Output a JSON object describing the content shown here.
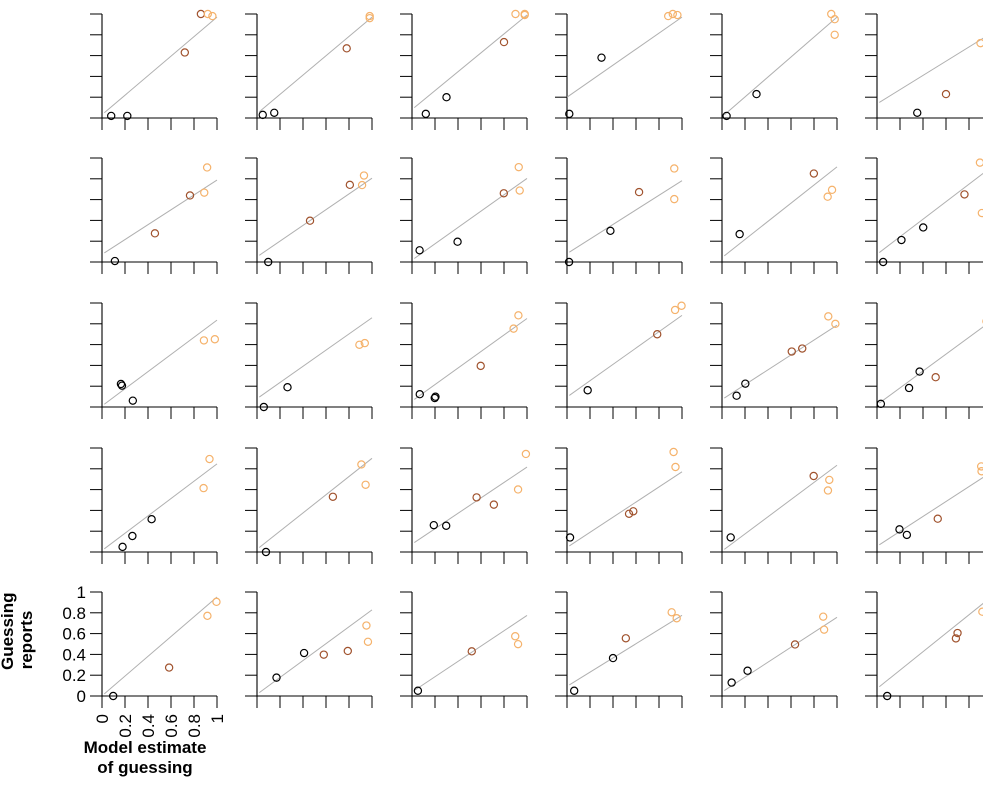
{
  "chart_data": {
    "type": "scatter",
    "panel_grid": {
      "rows": 5,
      "cols": 6
    },
    "xlabel": [
      "Model estimate",
      "of guessing"
    ],
    "ylabel": [
      "Guessing",
      "reports"
    ],
    "xlim": [
      0,
      1
    ],
    "ylim": [
      0,
      1
    ],
    "x_ticks": [
      "0",
      "0.2",
      "0.4",
      "0.6",
      "0.8",
      "1"
    ],
    "y_ticks": [
      "0",
      "0.2",
      "0.4",
      "0.6",
      "0.8",
      "1"
    ],
    "colors": {
      "points_low": "#000000",
      "points_mid": "#a0522d",
      "points_high": "#f5b26b",
      "fit_line": "#b0b0b0",
      "axes": "#000000"
    },
    "panels": [
      {
        "points": [
          [
            0.08,
            0.02
          ],
          [
            0.22,
            0.02
          ],
          [
            0.72,
            0.63
          ],
          [
            0.86,
            1.0
          ],
          [
            0.92,
            1.0
          ],
          [
            0.96,
            0.98
          ]
        ],
        "fit": [
          0.05,
          0.97
        ]
      },
      {
        "points": [
          [
            0.05,
            0.03
          ],
          [
            0.15,
            0.05
          ],
          [
            0.78,
            0.67
          ],
          [
            0.98,
            0.96
          ],
          [
            0.98,
            0.98
          ]
        ],
        "fit": [
          0.06,
          0.97
        ]
      },
      {
        "points": [
          [
            0.12,
            0.04
          ],
          [
            0.3,
            0.2
          ],
          [
            0.8,
            0.73
          ],
          [
            0.9,
            1.0
          ],
          [
            0.98,
            1.0
          ],
          [
            0.98,
            0.99
          ]
        ],
        "fit": [
          0.1,
          0.99
        ]
      },
      {
        "points": [
          [
            0.02,
            0.04
          ],
          [
            0.3,
            0.58
          ],
          [
            0.88,
            0.98
          ],
          [
            0.92,
            1.0
          ],
          [
            0.96,
            0.99
          ]
        ],
        "fit": [
          0.2,
          0.97
        ]
      },
      {
        "points": [
          [
            0.04,
            0.02
          ],
          [
            0.3,
            0.23
          ],
          [
            0.95,
            1.0
          ],
          [
            0.98,
            0.95
          ],
          [
            0.98,
            0.8
          ]
        ],
        "fit": [
          0.03,
          0.97
        ]
      },
      {
        "points": [
          [
            0.35,
            0.05
          ],
          [
            0.6,
            0.23
          ],
          [
            0.97,
            0.72
          ],
          [
            1.0,
            0.7
          ],
          [
            0.9,
            0.72
          ]
        ],
        "fit": [
          0.15,
          0.82
        ]
      }
    ],
    "rows_described": "5 rows x 6 columns of small scatter panels, each with black-to-orange circles and a grey fitted line; only the bottom-left panel shows tick labels"
  },
  "icons": {
    "marker": "circle-marker"
  }
}
